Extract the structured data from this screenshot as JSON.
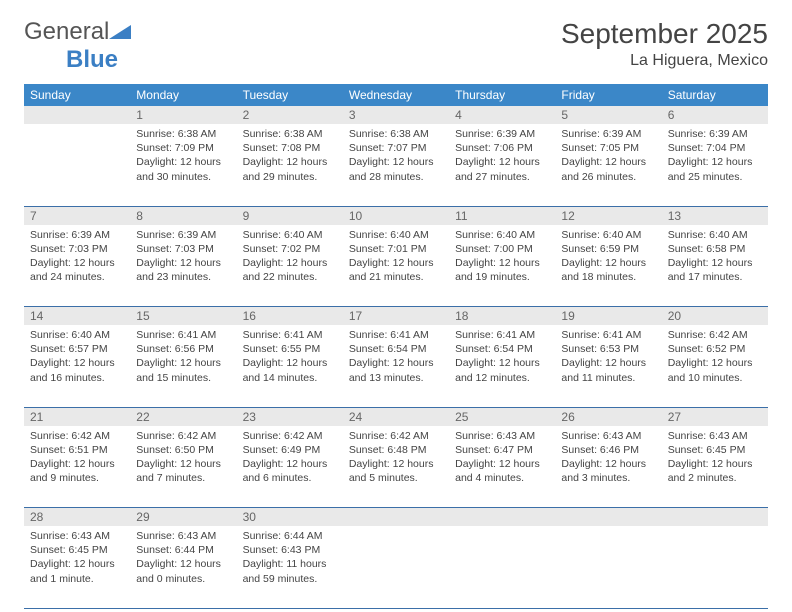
{
  "brand": {
    "part1": "General",
    "part2": "Blue"
  },
  "title": "September 2025",
  "location": "La Higuera, Mexico",
  "colors": {
    "header_bg": "#3b87c8",
    "header_text": "#ffffff",
    "daynum_bg": "#e9e9e9",
    "daynum_text": "#666666",
    "border": "#3b6fa8",
    "body_text": "#444444",
    "logo_blue": "#3b7fc4"
  },
  "weekdays": [
    "Sunday",
    "Monday",
    "Tuesday",
    "Wednesday",
    "Thursday",
    "Friday",
    "Saturday"
  ],
  "weeks": [
    [
      null,
      {
        "n": "1",
        "sr": "6:38 AM",
        "ss": "7:09 PM",
        "dl": "12 hours and 30 minutes."
      },
      {
        "n": "2",
        "sr": "6:38 AM",
        "ss": "7:08 PM",
        "dl": "12 hours and 29 minutes."
      },
      {
        "n": "3",
        "sr": "6:38 AM",
        "ss": "7:07 PM",
        "dl": "12 hours and 28 minutes."
      },
      {
        "n": "4",
        "sr": "6:39 AM",
        "ss": "7:06 PM",
        "dl": "12 hours and 27 minutes."
      },
      {
        "n": "5",
        "sr": "6:39 AM",
        "ss": "7:05 PM",
        "dl": "12 hours and 26 minutes."
      },
      {
        "n": "6",
        "sr": "6:39 AM",
        "ss": "7:04 PM",
        "dl": "12 hours and 25 minutes."
      }
    ],
    [
      {
        "n": "7",
        "sr": "6:39 AM",
        "ss": "7:03 PM",
        "dl": "12 hours and 24 minutes."
      },
      {
        "n": "8",
        "sr": "6:39 AM",
        "ss": "7:03 PM",
        "dl": "12 hours and 23 minutes."
      },
      {
        "n": "9",
        "sr": "6:40 AM",
        "ss": "7:02 PM",
        "dl": "12 hours and 22 minutes."
      },
      {
        "n": "10",
        "sr": "6:40 AM",
        "ss": "7:01 PM",
        "dl": "12 hours and 21 minutes."
      },
      {
        "n": "11",
        "sr": "6:40 AM",
        "ss": "7:00 PM",
        "dl": "12 hours and 19 minutes."
      },
      {
        "n": "12",
        "sr": "6:40 AM",
        "ss": "6:59 PM",
        "dl": "12 hours and 18 minutes."
      },
      {
        "n": "13",
        "sr": "6:40 AM",
        "ss": "6:58 PM",
        "dl": "12 hours and 17 minutes."
      }
    ],
    [
      {
        "n": "14",
        "sr": "6:40 AM",
        "ss": "6:57 PM",
        "dl": "12 hours and 16 minutes."
      },
      {
        "n": "15",
        "sr": "6:41 AM",
        "ss": "6:56 PM",
        "dl": "12 hours and 15 minutes."
      },
      {
        "n": "16",
        "sr": "6:41 AM",
        "ss": "6:55 PM",
        "dl": "12 hours and 14 minutes."
      },
      {
        "n": "17",
        "sr": "6:41 AM",
        "ss": "6:54 PM",
        "dl": "12 hours and 13 minutes."
      },
      {
        "n": "18",
        "sr": "6:41 AM",
        "ss": "6:54 PM",
        "dl": "12 hours and 12 minutes."
      },
      {
        "n": "19",
        "sr": "6:41 AM",
        "ss": "6:53 PM",
        "dl": "12 hours and 11 minutes."
      },
      {
        "n": "20",
        "sr": "6:42 AM",
        "ss": "6:52 PM",
        "dl": "12 hours and 10 minutes."
      }
    ],
    [
      {
        "n": "21",
        "sr": "6:42 AM",
        "ss": "6:51 PM",
        "dl": "12 hours and 9 minutes."
      },
      {
        "n": "22",
        "sr": "6:42 AM",
        "ss": "6:50 PM",
        "dl": "12 hours and 7 minutes."
      },
      {
        "n": "23",
        "sr": "6:42 AM",
        "ss": "6:49 PM",
        "dl": "12 hours and 6 minutes."
      },
      {
        "n": "24",
        "sr": "6:42 AM",
        "ss": "6:48 PM",
        "dl": "12 hours and 5 minutes."
      },
      {
        "n": "25",
        "sr": "6:43 AM",
        "ss": "6:47 PM",
        "dl": "12 hours and 4 minutes."
      },
      {
        "n": "26",
        "sr": "6:43 AM",
        "ss": "6:46 PM",
        "dl": "12 hours and 3 minutes."
      },
      {
        "n": "27",
        "sr": "6:43 AM",
        "ss": "6:45 PM",
        "dl": "12 hours and 2 minutes."
      }
    ],
    [
      {
        "n": "28",
        "sr": "6:43 AM",
        "ss": "6:45 PM",
        "dl": "12 hours and 1 minute."
      },
      {
        "n": "29",
        "sr": "6:43 AM",
        "ss": "6:44 PM",
        "dl": "12 hours and 0 minutes."
      },
      {
        "n": "30",
        "sr": "6:44 AM",
        "ss": "6:43 PM",
        "dl": "11 hours and 59 minutes."
      },
      null,
      null,
      null,
      null
    ]
  ],
  "labels": {
    "sunrise": "Sunrise:",
    "sunset": "Sunset:",
    "daylight": "Daylight:"
  }
}
